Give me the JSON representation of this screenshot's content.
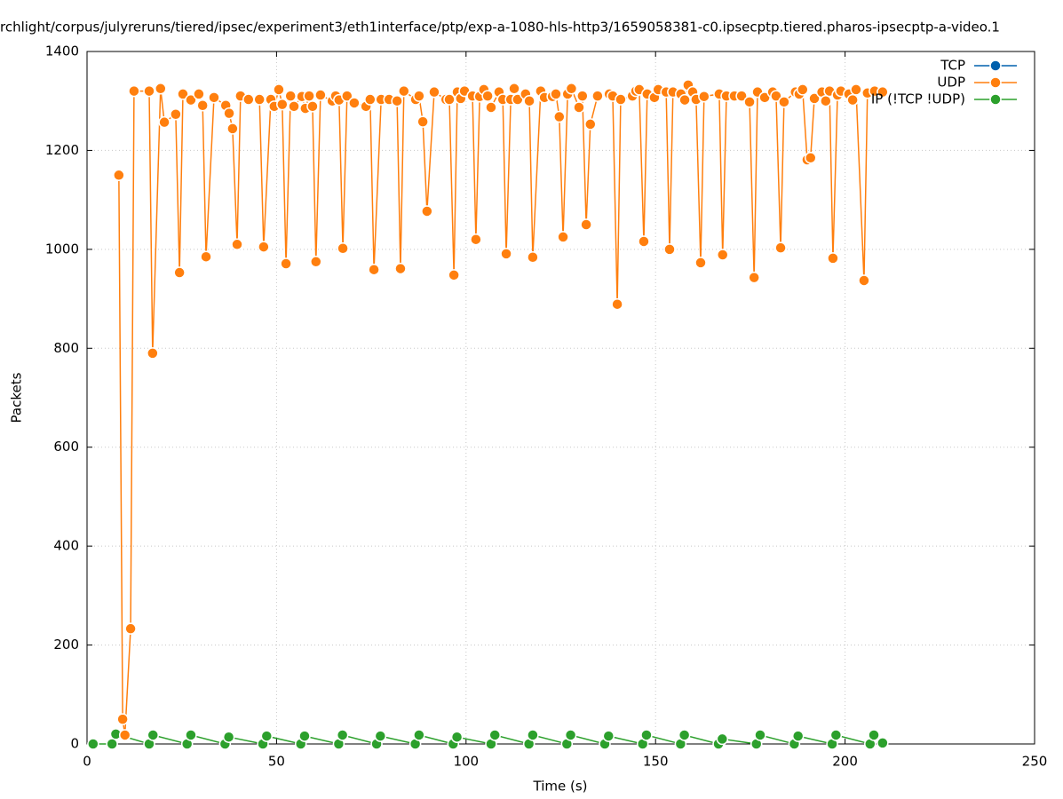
{
  "chart_data": {
    "type": "line",
    "title": "rchlight/corpus/julyreruns/tiered/ipsec/experiment3/eth1interface/ptp/exp-a-1080-hls-http3/1659058381-c0.ipsecptp.tiered.pharos-ipsecptp-a-video.1",
    "xlabel": "Time (s)",
    "ylabel": "Packets",
    "xlim": [
      0,
      250
    ],
    "xticks": [
      0,
      50,
      100,
      150,
      200,
      250
    ],
    "ylim": [
      0,
      1400
    ],
    "yticks": [
      0,
      200,
      400,
      600,
      800,
      1000,
      1200,
      1400
    ],
    "grid": true,
    "legend": "top-right",
    "series": [
      {
        "name": "TCP",
        "color": "#0060ad",
        "x": [],
        "values": []
      },
      {
        "name": "UDP",
        "color": "#ff7f0e",
        "x": [
          8.4,
          9.4,
          10,
          11.5,
          12.4,
          16.4,
          17.3,
          19.4,
          20.4,
          23.4,
          24.4,
          25.3,
          27.4,
          29.5,
          30.5,
          31.4,
          33.5,
          36.6,
          37.5,
          38.4,
          39.6,
          40.5,
          42.6,
          45.5,
          46.6,
          48.5,
          49.4,
          50.6,
          51.5,
          52.5,
          53.7,
          54.6,
          56.7,
          57.6,
          58.6,
          59.5,
          60.4,
          61.6,
          64.7,
          65.6,
          66.5,
          67.5,
          68.6,
          70.5,
          73.6,
          74.7,
          75.7,
          77.6,
          79.7,
          81.8,
          82.7,
          83.6,
          86.7,
          87.6,
          88.6,
          89.7,
          91.6,
          94.7,
          95.6,
          96.8,
          97.7,
          98.6,
          99.6,
          101.7,
          102.6,
          103.6,
          104.7,
          105.7,
          106.6,
          108.7,
          109.7,
          110.6,
          111.8,
          112.7,
          113.6,
          115.7,
          116.7,
          117.6,
          119.7,
          120.7,
          122.8,
          123.7,
          124.6,
          125.6,
          126.8,
          127.8,
          129.8,
          130.7,
          131.7,
          132.8,
          134.7,
          137.8,
          138.7,
          139.9,
          140.8,
          143.9,
          144.8,
          145.7,
          146.9,
          147.8,
          149.7,
          150.7,
          152.8,
          153.7,
          154.6,
          156.7,
          157.7,
          158.6,
          159.8,
          160.7,
          161.9,
          162.8,
          166.8,
          167.7,
          168.7,
          170.8,
          172.7,
          174.8,
          176,
          176.9,
          178.8,
          180.9,
          181.8,
          183,
          183.9,
          186.9,
          187.9,
          188.8,
          190,
          190.9,
          191.9,
          193.9,
          194.9,
          195.9,
          196.8,
          198,
          198.9,
          201,
          202,
          202.9,
          205,
          205.9,
          207.8,
          209.9
        ],
        "values": [
          1150,
          50,
          18,
          233,
          1320,
          1320,
          790,
          1325,
          1257,
          1273,
          953,
          1314,
          1302,
          1314,
          1291,
          985,
          1307,
          1291,
          1275,
          1244,
          1010,
          1310,
          1303,
          1303,
          1005,
          1303,
          1289,
          1323,
          1293,
          971,
          1310,
          1289,
          1309,
          1285,
          1310,
          1289,
          975,
          1312,
          1300,
          1310,
          1302,
          1002,
          1310,
          1296,
          1289,
          1303,
          959,
          1303,
          1303,
          1300,
          961,
          1320,
          1303,
          1310,
          1258,
          1077,
          1318,
          1303,
          1303,
          948,
          1318,
          1305,
          1320,
          1310,
          1020,
          1309,
          1323,
          1310,
          1287,
          1318,
          1303,
          991,
          1303,
          1325,
          1303,
          1314,
          1300,
          984,
          1320,
          1307,
          1309,
          1314,
          1268,
          1025,
          1314,
          1325,
          1287,
          1310,
          1050,
          1253,
          1310,
          1314,
          1310,
          889,
          1303,
          1310,
          1320,
          1323,
          1016,
          1314,
          1307,
          1323,
          1318,
          1000,
          1318,
          1314,
          1302,
          1332,
          1318,
          1303,
          973,
          1309,
          1314,
          989,
          1310,
          1310,
          1310,
          1298,
          943,
          1318,
          1307,
          1318,
          1310,
          1003,
          1298,
          1318,
          1314,
          1323,
          1181,
          1185,
          1305,
          1318,
          1300,
          1320,
          982,
          1312,
          1320,
          1314,
          1302,
          1323,
          937,
          1316,
          1320,
          1318
        ]
      },
      {
        "name": "IP (!TCP  !UDP)",
        "color": "#2ca02c",
        "x": [
          1.6,
          6.6,
          7.6,
          16.4,
          17.4,
          26.4,
          27.4,
          36.4,
          37.4,
          46.4,
          47.4,
          56.4,
          57.4,
          66.4,
          67.4,
          76.4,
          77.4,
          86.6,
          87.6,
          96.6,
          97.6,
          106.6,
          107.6,
          116.6,
          117.6,
          126.6,
          127.6,
          136.6,
          137.6,
          146.6,
          147.6,
          156.6,
          157.6,
          166.6,
          167.6,
          176.6,
          177.6,
          186.6,
          187.6,
          196.6,
          197.6,
          206.6,
          207.6,
          209.9
        ],
        "values": [
          0,
          0,
          20,
          0,
          18,
          0,
          18,
          0,
          14,
          0,
          16,
          0,
          16,
          0,
          18,
          0,
          16,
          0,
          18,
          0,
          14,
          0,
          18,
          0,
          18,
          0,
          18,
          0,
          16,
          0,
          18,
          0,
          18,
          0,
          10,
          0,
          18,
          0,
          16,
          0,
          18,
          0,
          18,
          2
        ]
      }
    ]
  }
}
